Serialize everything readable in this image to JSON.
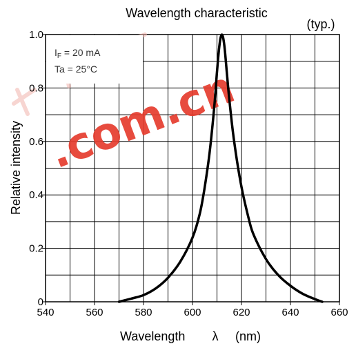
{
  "chart_data": {
    "type": "line",
    "title": "Wavelength characteristic",
    "note": "(typ.)",
    "xlabel": "Wavelength λ (nm)",
    "xlabel_parts": {
      "main": "Wavelength",
      "symbol": "λ",
      "unit": "(nm)"
    },
    "ylabel": "Relative intensity",
    "xlim": [
      540,
      660
    ],
    "ylim": [
      0,
      1.0
    ],
    "x_ticks": [
      "540",
      "560",
      "580",
      "600",
      "620",
      "640",
      "660"
    ],
    "y_ticks": [
      "0",
      "0.2",
      "0.4",
      "0.6",
      "0.8",
      "1.0"
    ],
    "grid": true,
    "conditions": [
      {
        "label_main": "I",
        "label_sub": "F",
        "text": " = 20 mA"
      },
      {
        "label_main": "Ta",
        "label_sub": "",
        "text": " = 25°C"
      }
    ],
    "series": [
      {
        "x": [
          570,
          575,
          580,
          585,
          590,
          595,
          600,
          603,
          605,
          607,
          609,
          610,
          611,
          612,
          613,
          614,
          615,
          617,
          620,
          623,
          625,
          630,
          635,
          640,
          645,
          650,
          653
        ],
        "y": [
          0.0,
          0.012,
          0.025,
          0.05,
          0.09,
          0.15,
          0.24,
          0.33,
          0.43,
          0.56,
          0.74,
          0.86,
          0.96,
          1.0,
          0.96,
          0.86,
          0.76,
          0.6,
          0.43,
          0.31,
          0.25,
          0.16,
          0.1,
          0.06,
          0.03,
          0.01,
          0.0
        ]
      }
    ]
  },
  "watermark": {
    "text": ".com.cn",
    "color": "#e63c2e",
    "faint_color": "#f2b3ac"
  }
}
